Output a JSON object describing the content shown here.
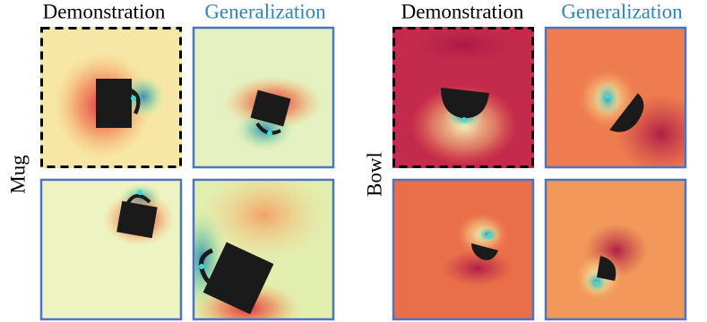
{
  "columns": [
    {
      "demonstration": "Demonstration",
      "generalization": "Generalization"
    },
    {
      "demonstration": "Demonstration",
      "generalization": "Generalization"
    }
  ],
  "rows": [
    "Mug",
    "Bowl"
  ]
}
